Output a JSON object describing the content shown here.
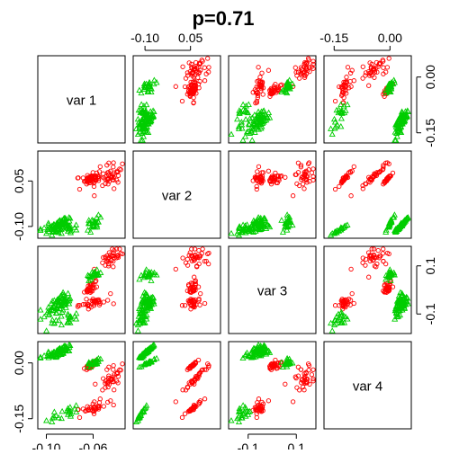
{
  "chart_data": {
    "type": "scatter",
    "title": "p=0.71",
    "variables": [
      "var 1",
      "var 2",
      "var 3",
      "var 4"
    ],
    "groups": [
      {
        "color": "#ff0000",
        "marker": "circle"
      },
      {
        "color": "#00cd00",
        "marker": "triangle"
      }
    ],
    "axes": {
      "var 1": {
        "range": [
          -0.105,
          -0.035
        ],
        "ticks": [
          -0.1,
          -0.06
        ],
        "tick_labels": [
          "-0.10",
          "-0.06"
        ]
      },
      "var 2": {
        "range": [
          -0.13,
          0.14
        ],
        "ticks": [
          -0.1,
          0.05
        ],
        "tick_labels": [
          "-0.10",
          "0.05"
        ]
      },
      "var 3": {
        "range": [
          -0.17,
          0.17
        ],
        "ticks": [
          -0.1,
          0.1
        ],
        "tick_labels": [
          "-0.1",
          "0.1"
        ]
      },
      "var 4": {
        "range": [
          -0.17,
          0.05
        ],
        "ticks": [
          -0.15,
          0.0
        ],
        "tick_labels": [
          "-0.15",
          "0.00"
        ]
      }
    },
    "tick_layout": {
      "top": [
        {
          "col": 1,
          "var": "var 2"
        },
        {
          "col": 3,
          "var": "var 4"
        }
      ],
      "bottom": [
        {
          "col": 0,
          "var": "var 1"
        },
        {
          "col": 2,
          "var": "var 3"
        }
      ],
      "left": [
        {
          "row": 1,
          "var": "var 2"
        },
        {
          "row": 3,
          "var": "var 4"
        }
      ],
      "right": [
        {
          "row": 0,
          "var": "var 4"
        },
        {
          "row": 2,
          "var": "var 3"
        }
      ]
    },
    "clusters": {
      "red": [
        {
          "var1": -0.045,
          "var2": 0.07,
          "var3": 0.13,
          "var4": -0.04,
          "sd": [
            0.007,
            0.025,
            0.025,
            0.022
          ],
          "n": 38
        },
        {
          "var1": -0.062,
          "var2": 0.06,
          "var3": 0.01,
          "var4": -0.005,
          "sd": [
            0.002,
            0.01,
            0.015,
            0.006
          ],
          "n": 30
        },
        {
          "var1": -0.058,
          "var2": 0.06,
          "var3": -0.05,
          "var4": -0.12,
          "sd": [
            0.007,
            0.015,
            0.015,
            0.01
          ],
          "n": 35
        }
      ],
      "green": [
        {
          "var1": -0.09,
          "var2": -0.095,
          "var3": -0.06,
          "var4": 0.03,
          "sd": [
            0.005,
            0.012,
            0.025,
            0.008
          ],
          "n": 70
        },
        {
          "var1": -0.085,
          "var2": -0.115,
          "var3": -0.13,
          "var4": -0.14,
          "sd": [
            0.007,
            0.01,
            0.018,
            0.012
          ],
          "n": 22
        },
        {
          "var1": -0.06,
          "var2": -0.09,
          "var3": 0.06,
          "var4": 0.0,
          "sd": [
            0.003,
            0.015,
            0.01,
            0.006
          ],
          "n": 25
        }
      ]
    }
  }
}
